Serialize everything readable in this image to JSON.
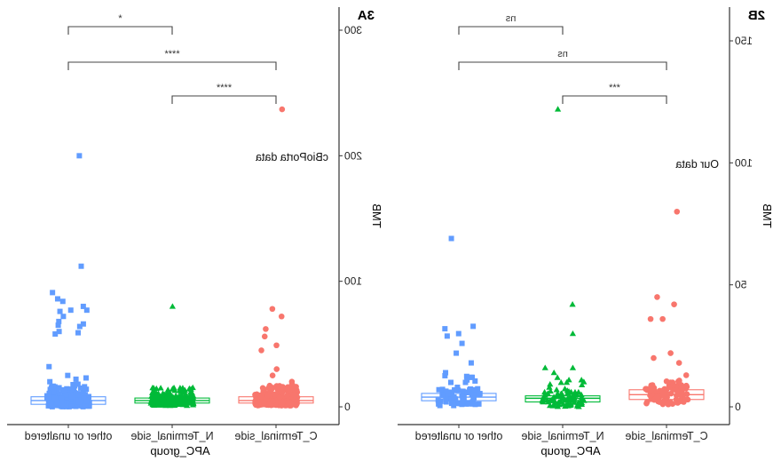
{
  "chart_data": [
    {
      "panel_label": "2B",
      "type": "box+jitter",
      "annotation": "Our data",
      "xlabel": "APC_group",
      "ylabel": "TMB",
      "ylim": [
        0,
        155
      ],
      "yticks": [
        0,
        50,
        100,
        150
      ],
      "categories": [
        "C_Terminal_side",
        "N_Terminal_side",
        "other or unaltered"
      ],
      "colors": [
        "#F8766D",
        "#00BA38",
        "#619CFF"
      ],
      "shapes": [
        "circle",
        "triangle",
        "square"
      ],
      "boxes": [
        {
          "q1": 3,
          "median": 5,
          "q3": 7
        },
        {
          "q1": 2,
          "median": 3.5,
          "q3": 4.5
        },
        {
          "q1": 2.5,
          "median": 4,
          "q3": 5.5
        }
      ],
      "outliers": [
        [
          80,
          45,
          42,
          36,
          36,
          22,
          20,
          18,
          10,
          8,
          7,
          7,
          8,
          5,
          4,
          3,
          2,
          6,
          9,
          3,
          2,
          4,
          1,
          5,
          8,
          6
        ],
        [
          122,
          42,
          30,
          16,
          16,
          14,
          12,
          10,
          8,
          6,
          5,
          4,
          3,
          2,
          7,
          9,
          11,
          6,
          3,
          2,
          1,
          5
        ],
        [
          69,
          33,
          32,
          30,
          29,
          26,
          22,
          18,
          14,
          11,
          10,
          8,
          7,
          6,
          5,
          3,
          2,
          1,
          4,
          6
        ]
      ],
      "comparisons": [
        {
          "groups": [
            "N_Terminal_side",
            "other or unaltered"
          ],
          "label": "ns"
        },
        {
          "groups": [
            "C_Terminal_side",
            "other or unaltered"
          ],
          "label": "ns"
        },
        {
          "groups": [
            "C_Terminal_side",
            "N_Terminal_side"
          ],
          "label": "***"
        }
      ]
    },
    {
      "panel_label": "3A",
      "type": "box+jitter",
      "annotation": "cBioPorta data",
      "xlabel": "APC_group",
      "ylabel": "TMB",
      "ylim": [
        -10,
        318
      ],
      "yticks": [
        0,
        100,
        200,
        300
      ],
      "categories": [
        "C_Terminal_side",
        "N_Terminal_side",
        "other or unaltered"
      ],
      "colors": [
        "#F8766D",
        "#00BA38",
        "#619CFF"
      ],
      "shapes": [
        "circle",
        "triangle",
        "square"
      ],
      "boxes": [
        {
          "q1": 3,
          "median": 5,
          "q3": 8
        },
        {
          "q1": 3,
          "median": 5,
          "q3": 7
        },
        {
          "q1": 2,
          "median": 5,
          "q3": 8
        }
      ],
      "outliers": [
        [
          237,
          78,
          72,
          62,
          56,
          49,
          45,
          30,
          25,
          20,
          18,
          17,
          15,
          14,
          12,
          10,
          9,
          8
        ],
        [
          80,
          15,
          14,
          13,
          12,
          11,
          10,
          9,
          8
        ],
        [
          200,
          112,
          91,
          86,
          84,
          80,
          77,
          77,
          76,
          72,
          68,
          66,
          65,
          64,
          60,
          59,
          58,
          32,
          25,
          23,
          22,
          20,
          18,
          16,
          14,
          12
        ]
      ],
      "comparisons": [
        {
          "groups": [
            "N_Terminal_side",
            "other or unaltered"
          ],
          "label": "*"
        },
        {
          "groups": [
            "C_Terminal_side",
            "other or unaltered"
          ],
          "label": "****"
        },
        {
          "groups": [
            "C_Terminal_side",
            "N_Terminal_side"
          ],
          "label": "****"
        }
      ]
    }
  ]
}
